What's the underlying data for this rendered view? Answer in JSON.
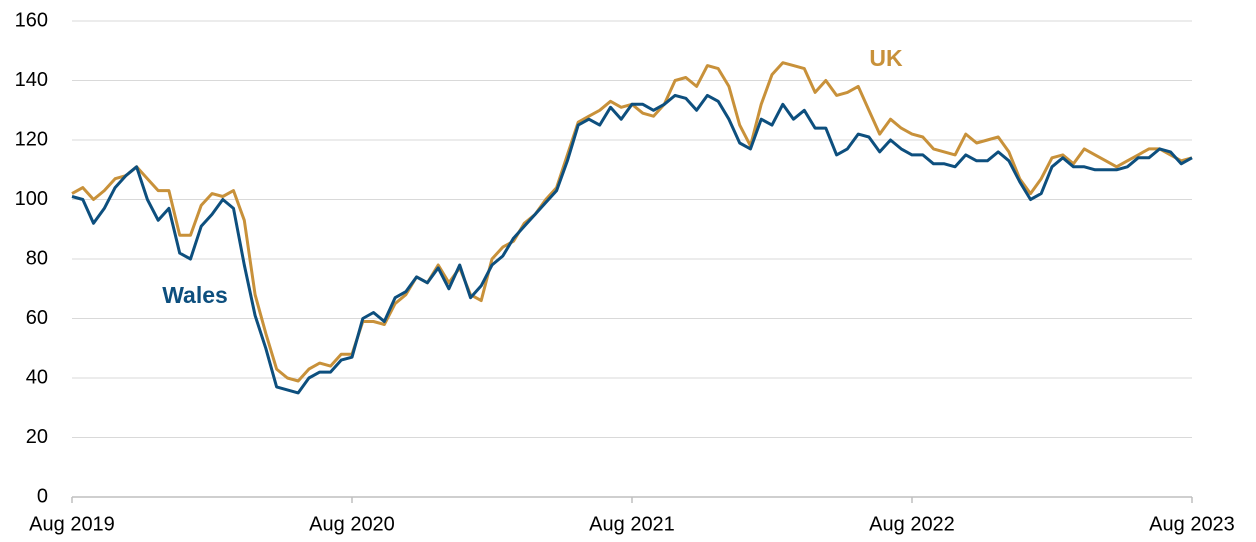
{
  "chart_data": {
    "type": "line",
    "categories": [
      "Aug 2019",
      null,
      null,
      null,
      null,
      null,
      null,
      null,
      null,
      null,
      null,
      null,
      null,
      null,
      null,
      null,
      null,
      null,
      null,
      null,
      null,
      null,
      null,
      null,
      null,
      null,
      "Aug 2020",
      null,
      null,
      null,
      null,
      null,
      null,
      null,
      null,
      null,
      null,
      null,
      null,
      null,
      null,
      null,
      null,
      null,
      null,
      null,
      null,
      null,
      null,
      null,
      null,
      null,
      "Aug 2021",
      null,
      null,
      null,
      null,
      null,
      null,
      null,
      null,
      null,
      null,
      null,
      null,
      null,
      null,
      null,
      null,
      null,
      null,
      null,
      null,
      null,
      null,
      null,
      null,
      null,
      "Aug 2022",
      null,
      null,
      null,
      null,
      null,
      null,
      null,
      null,
      null,
      null,
      null,
      null,
      null,
      null,
      null,
      null,
      null,
      null,
      null,
      null,
      null,
      null,
      null,
      null,
      null,
      "Aug 2023"
    ],
    "series": [
      {
        "name": "UK",
        "color": "#c8913a",
        "values": [
          102,
          104,
          100,
          103,
          107,
          108,
          111,
          107,
          103,
          103,
          88,
          88,
          98,
          102,
          101,
          103,
          93,
          68,
          55,
          43,
          40,
          39,
          43,
          45,
          44,
          48,
          48,
          59,
          59,
          58,
          65,
          68,
          74,
          72,
          78,
          72,
          77,
          68,
          66,
          80,
          84,
          86,
          92,
          95,
          100,
          104,
          115,
          126,
          128,
          130,
          133,
          131,
          132,
          129,
          128,
          132,
          140,
          141,
          138,
          145,
          144,
          138,
          125,
          118,
          132,
          142,
          146,
          145,
          144,
          136,
          140,
          135,
          136,
          138,
          130,
          122,
          127,
          124,
          122,
          121,
          117,
          116,
          115,
          122,
          119,
          120,
          121,
          116,
          107,
          102,
          107,
          114,
          115,
          112,
          117,
          115,
          113,
          111,
          113,
          115,
          117,
          117,
          115,
          113,
          114
        ]
      },
      {
        "name": "Wales",
        "color": "#0d4f7e",
        "values": [
          101,
          100,
          92,
          97,
          104,
          108,
          111,
          100,
          93,
          97,
          82,
          80,
          91,
          95,
          100,
          97,
          78,
          61,
          50,
          37,
          36,
          35,
          40,
          42,
          42,
          46,
          47,
          60,
          62,
          59,
          67,
          69,
          74,
          72,
          77,
          70,
          78,
          67,
          71,
          78,
          81,
          87,
          91,
          95,
          99,
          103,
          113,
          125,
          127,
          125,
          131,
          127,
          132,
          132,
          130,
          132,
          135,
          134,
          130,
          135,
          133,
          127,
          119,
          117,
          127,
          125,
          132,
          127,
          130,
          124,
          124,
          115,
          117,
          122,
          121,
          116,
          120,
          117,
          115,
          115,
          112,
          112,
          111,
          115,
          113,
          113,
          116,
          113,
          106,
          100,
          102,
          111,
          114,
          111,
          111,
          110,
          110,
          110,
          111,
          114,
          114,
          117,
          116,
          112,
          114
        ]
      }
    ],
    "ylim": [
      0,
      160
    ],
    "yticks": [
      0,
      20,
      40,
      60,
      80,
      100,
      120,
      140,
      160
    ],
    "grid": true
  }
}
